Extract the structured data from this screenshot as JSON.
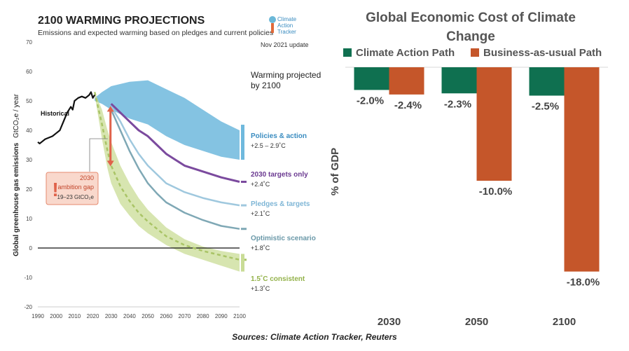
{
  "chart_data": [
    {
      "type": "line",
      "title": "2100 WARMING PROJECTIONS",
      "subtitle": "Emissions and expected warming based on pledges and current policies",
      "ylabel": "Global greenhouse gas emissions",
      "ylabel_unit": "GtCO₂e / year",
      "xlim": [
        1990,
        2100
      ],
      "ylim": [
        -20,
        70
      ],
      "x_ticks": [
        1990,
        2000,
        2010,
        2020,
        2030,
        2040,
        2050,
        2060,
        2070,
        2080,
        2090,
        2100
      ],
      "y_ticks": [
        -20,
        -10,
        0,
        10,
        20,
        30,
        40,
        50,
        60,
        70
      ],
      "logo": {
        "line1": "Climate",
        "line2": "Action",
        "line3": "Tracker"
      },
      "update_note": "Nov 2021 update",
      "legend_header": [
        "Warming projected",
        "by 2100"
      ],
      "historical": {
        "label": "Historical",
        "x": [
          1990,
          1991,
          1992,
          1994,
          1996,
          1998,
          2000,
          2002,
          2004,
          2006,
          2008,
          2009,
          2010,
          2012,
          2014,
          2016,
          2018,
          2019,
          2020,
          2021
        ],
        "y": [
          36,
          35.5,
          36,
          37,
          37.5,
          38,
          39,
          40,
          43,
          46,
          48,
          47,
          50,
          51,
          51.5,
          51,
          52,
          53,
          51,
          52
        ]
      },
      "policies_band": {
        "label": "Policies & action",
        "warming": "+2.5 – 2.9˚C",
        "x": [
          2021,
          2025,
          2030,
          2040,
          2050,
          2060,
          2070,
          2080,
          2090,
          2100
        ],
        "upper": [
          51,
          53,
          55,
          56.5,
          57,
          54,
          51,
          47,
          43,
          40
        ],
        "lower": [
          50,
          49,
          47,
          44,
          42,
          38,
          35,
          33,
          31,
          30
        ]
      },
      "series": [
        {
          "name": "2030 targets only",
          "warming": "+2.4˚C",
          "color": "#7b4a9e",
          "x": [
            2030,
            2035,
            2040,
            2045,
            2050,
            2055,
            2060,
            2070,
            2080,
            2090,
            2100
          ],
          "y": [
            49,
            46,
            43,
            40,
            38,
            35,
            32,
            28,
            26,
            24,
            22.5
          ]
        },
        {
          "name": "Pledges & targets",
          "warming": "+2.1˚C",
          "color": "#9fc8de",
          "x": [
            2030,
            2035,
            2040,
            2045,
            2050,
            2055,
            2060,
            2070,
            2080,
            2090,
            2100
          ],
          "y": [
            48,
            43,
            37,
            32,
            28,
            25,
            22,
            19,
            17,
            15.5,
            14.5
          ]
        },
        {
          "name": "Optimistic scenario",
          "warming": "+1.8˚C",
          "color": "#7fa8b5",
          "x": [
            2030,
            2035,
            2040,
            2045,
            2050,
            2055,
            2060,
            2070,
            2080,
            2090,
            2100
          ],
          "y": [
            47,
            40,
            33,
            27,
            22,
            18.5,
            15.5,
            12,
            9.5,
            7.5,
            6.5
          ]
        },
        {
          "name": "1.5˚C consistent",
          "warming": "+1.3˚C",
          "color": "#a9c466",
          "dashed": true,
          "x": [
            2021,
            2025,
            2028,
            2030,
            2035,
            2040,
            2045,
            2050,
            2055,
            2060,
            2070,
            2080,
            2090,
            2100
          ],
          "y": [
            53,
            42,
            33,
            28,
            21,
            16,
            12,
            9,
            6.5,
            4,
            1,
            -1,
            -2.5,
            -4
          ],
          "band_upper": [
            53,
            47,
            40,
            36,
            28,
            22,
            17,
            13,
            10,
            7,
            3,
            0.5,
            -1,
            -2
          ],
          "band_lower": [
            52,
            37,
            27,
            22,
            15,
            11,
            7.5,
            5,
            3,
            1,
            -2,
            -4,
            -6,
            -8
          ]
        }
      ],
      "ambition_gap": {
        "label_year": "2030",
        "label": "ambition gap",
        "range": "19–23 GtCO₂e",
        "x": 2030,
        "from": 48,
        "to": 28
      }
    },
    {
      "type": "bar",
      "title": "Global Economic Cost of Climate Change",
      "categories": [
        "2030",
        "2050",
        "2100"
      ],
      "series": [
        {
          "name": "Climate Action Path",
          "color": "#0f7050",
          "values": [
            -2.0,
            -2.3,
            -2.5
          ],
          "labels": [
            "-2.0%",
            "-2.3%",
            "-2.5%"
          ]
        },
        {
          "name": "Business-as-usual Path",
          "color": "#c5562a",
          "values": [
            -2.4,
            -10.0,
            -18.0
          ],
          "labels": [
            "-2.4%",
            "-10.0%",
            "-18.0%"
          ]
        }
      ],
      "ylabel": "% of GDP",
      "ylim": [
        -20,
        0
      ],
      "grid": false,
      "legend": "top"
    }
  ],
  "source_text": "Sources: Climate Action Tracker, Reuters"
}
